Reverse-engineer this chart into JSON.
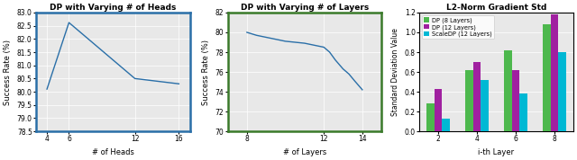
{
  "chart1": {
    "title": "DP with Varying # of Heads",
    "xlabel": "# of Heads",
    "ylabel": "Success Rate (%)",
    "x": [
      4,
      6,
      12,
      16
    ],
    "y": [
      80.1,
      82.62,
      80.5,
      80.3
    ],
    "xlim": [
      3,
      17
    ],
    "ylim": [
      78.5,
      83
    ],
    "xticks": [
      4,
      6,
      12,
      16
    ],
    "yticks": [
      78.5,
      79,
      79.5,
      80,
      80.5,
      81,
      81.5,
      82,
      82.5,
      83
    ],
    "line_color": "#2a6fa8",
    "border_color": "#2a6fa8",
    "facecolor": "#e8e8e8"
  },
  "chart2": {
    "title": "DP with Varying # of Layers",
    "xlabel": "# of Layers",
    "ylabel": "Success Rate (%)",
    "x": [
      8,
      8.5,
      9,
      9.5,
      10,
      10.5,
      11,
      11.5,
      12,
      12.3,
      12.6,
      13,
      13.3,
      13.6,
      14
    ],
    "y": [
      80.0,
      79.7,
      79.5,
      79.3,
      79.1,
      79.0,
      78.9,
      78.7,
      78.5,
      78.0,
      77.2,
      76.3,
      75.8,
      75.1,
      74.2
    ],
    "xlim": [
      7,
      15
    ],
    "ylim": [
      70,
      82
    ],
    "xticks": [
      8,
      12,
      14
    ],
    "yticks": [
      70,
      72,
      74,
      76,
      78,
      80,
      82
    ],
    "line_color": "#2a6fa8",
    "border_color": "#3a7a2a",
    "facecolor": "#e8e8e8"
  },
  "chart3": {
    "title": "L2-Norm Gradient Std",
    "xlabel": "i-th Layer",
    "ylabel": "Standard Deviation Value",
    "x_categories": [
      2,
      4,
      6,
      8
    ],
    "series": [
      {
        "label": "DP (8 Layers)",
        "color": "#4db84d",
        "values": [
          0.28,
          0.62,
          0.82,
          1.08
        ]
      },
      {
        "label": "DP (12 Layers)",
        "color": "#a020a0",
        "values": [
          0.43,
          0.7,
          0.62,
          1.18
        ]
      },
      {
        "label": "ScaleDP (12 Layers)",
        "color": "#00b8d4",
        "values": [
          0.13,
          0.52,
          0.38,
          0.8
        ]
      }
    ],
    "ylim": [
      0,
      1.2
    ],
    "yticks": [
      0,
      0.2,
      0.4,
      0.6,
      0.8,
      1.0,
      1.2
    ],
    "facecolor": "#e8e8e8"
  }
}
